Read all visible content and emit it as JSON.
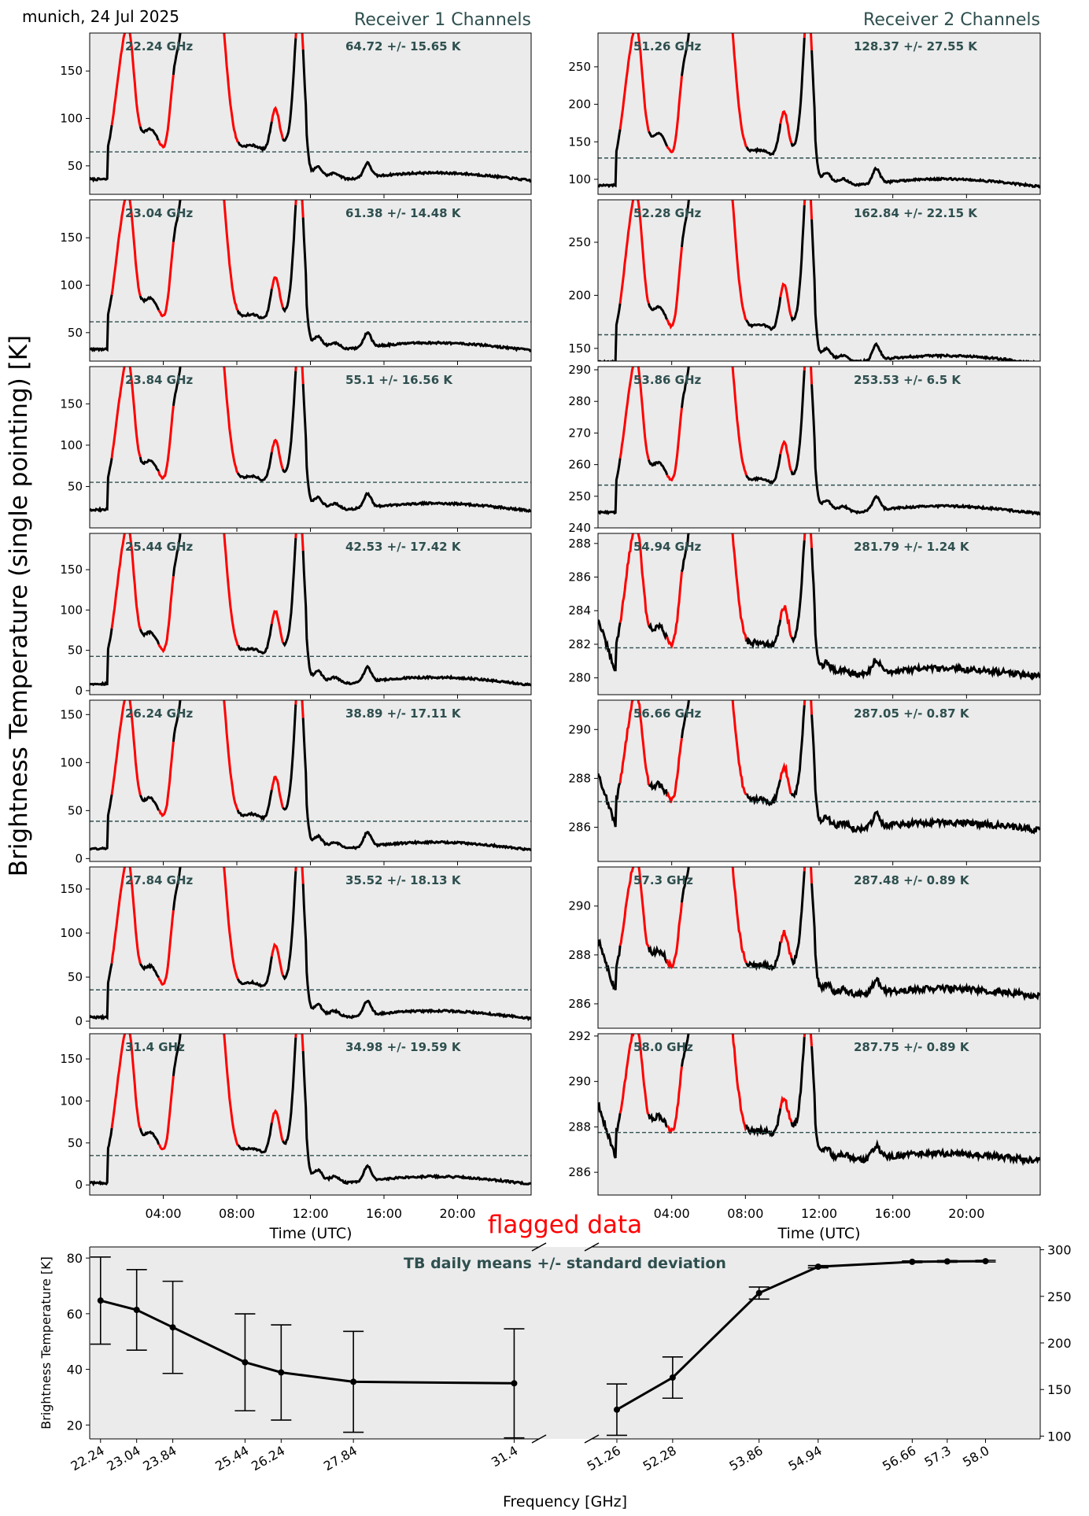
{
  "header": {
    "station_date": "munich, 24 Jul 2025",
    "receiver1_title": "Receiver 1 Channels",
    "receiver2_title": "Receiver 2 Channels",
    "y_label": "Brightness Temperature (single pointing) [K]",
    "time_xlabel": "Time (UTC)",
    "flag_label": "flagged data"
  },
  "colors": {
    "panel_bg": "#ebebeb",
    "trace": "#000000",
    "flagged": "#ff0000",
    "mean_line": "#2f4f4f",
    "title": "#2f4f4f",
    "flag_text": "#ff0000"
  },
  "time_ticks": [
    "04:00",
    "08:00",
    "12:00",
    "16:00",
    "20:00"
  ],
  "time_tick_hours": [
    4,
    8,
    12,
    16,
    20
  ],
  "time_range_hours": [
    0,
    24
  ],
  "flag_intervals_hours": [
    [
      1.2,
      2.7
    ],
    [
      3.7,
      4.5
    ],
    [
      5.2,
      5.8
    ],
    [
      6.0,
      8.0
    ],
    [
      9.9,
      10.5
    ],
    [
      11.2,
      11.6
    ]
  ],
  "rec1": {
    "channels": [
      {
        "freq": "22.24 GHz",
        "stats": "64.72 +/- 15.65 K",
        "mean": 64.72,
        "ylim": [
          20,
          190
        ],
        "yticks": [
          50,
          100,
          150
        ],
        "yticklabels": [
          "50",
          "100",
          "150"
        ]
      },
      {
        "freq": "23.04 GHz",
        "stats": "61.38 +/- 14.48 K",
        "mean": 61.38,
        "ylim": [
          20,
          190
        ],
        "yticks": [
          50,
          100,
          150
        ],
        "yticklabels": [
          "50",
          "100",
          "150"
        ]
      },
      {
        "freq": "23.84 GHz",
        "stats": "55.1 +/- 16.56 K",
        "mean": 55.1,
        "ylim": [
          0,
          195
        ],
        "yticks": [
          50,
          100,
          150
        ],
        "yticklabels": [
          "50",
          "100",
          "150"
        ]
      },
      {
        "freq": "25.44 GHz",
        "stats": "42.53 +/- 17.42 K",
        "mean": 42.53,
        "ylim": [
          -5,
          195
        ],
        "yticks": [
          0,
          50,
          100,
          150
        ],
        "yticklabels": [
          "0",
          "50",
          "100",
          "150"
        ]
      },
      {
        "freq": "26.24 GHz",
        "stats": "38.89 +/- 17.11 K",
        "mean": 38.89,
        "ylim": [
          -3,
          165
        ],
        "yticks": [
          0,
          50,
          100,
          150
        ],
        "yticklabels": [
          "0",
          "50",
          "100",
          "150"
        ]
      },
      {
        "freq": "27.84 GHz",
        "stats": "35.52 +/- 18.13 K",
        "mean": 35.52,
        "ylim": [
          -8,
          175
        ],
        "yticks": [
          0,
          50,
          100,
          150
        ],
        "yticklabels": [
          "0",
          "50",
          "100",
          "150"
        ]
      },
      {
        "freq": "31.4 GHz",
        "stats": "34.98 +/- 19.59 K",
        "mean": 34.98,
        "ylim": [
          -12,
          180
        ],
        "yticks": [
          0,
          50,
          100,
          150
        ],
        "yticklabels": [
          "0",
          "50",
          "100",
          "150"
        ]
      }
    ]
  },
  "rec2": {
    "channels": [
      {
        "freq": "51.26 GHz",
        "stats": "128.37 +/- 27.55 K",
        "mean": 128.37,
        "ylim": [
          80,
          295
        ],
        "yticks": [
          100,
          150,
          200,
          250
        ],
        "yticklabels": [
          "100",
          "150",
          "200",
          "250"
        ]
      },
      {
        "freq": "52.28 GHz",
        "stats": "162.84 +/- 22.15 K",
        "mean": 162.84,
        "ylim": [
          138,
          290
        ],
        "yticks": [
          150,
          200,
          250
        ],
        "yticklabels": [
          "150",
          "200",
          "250"
        ]
      },
      {
        "freq": "53.86 GHz",
        "stats": "253.53 +/- 6.5 K",
        "mean": 253.53,
        "ylim": [
          240,
          291
        ],
        "yticks": [
          240,
          250,
          260,
          270,
          280,
          290
        ],
        "yticklabels": [
          "240",
          "250",
          "260",
          "270",
          "280",
          "290"
        ]
      },
      {
        "freq": "54.94 GHz",
        "stats": "281.79 +/- 1.24 K",
        "mean": 281.79,
        "ylim": [
          279,
          288.6
        ],
        "yticks": [
          280,
          282,
          284,
          286,
          288
        ],
        "yticklabels": [
          "280",
          "282",
          "284",
          "286",
          "288"
        ]
      },
      {
        "freq": "56.66 GHz",
        "stats": "287.05 +/- 0.87 K",
        "mean": 287.05,
        "ylim": [
          284.6,
          291.2
        ],
        "yticks": [
          286,
          288,
          290
        ],
        "yticklabels": [
          "286",
          "288",
          "290"
        ]
      },
      {
        "freq": "57.3 GHz",
        "stats": "287.48 +/- 0.89 K",
        "mean": 287.48,
        "ylim": [
          285,
          291.6
        ],
        "yticks": [
          286,
          288,
          290
        ],
        "yticklabels": [
          "286",
          "288",
          "290"
        ]
      },
      {
        "freq": "58.0 GHz",
        "stats": "287.75 +/- 0.89 K",
        "mean": 287.75,
        "ylim": [
          285,
          292.1
        ],
        "yticks": [
          286,
          288,
          290,
          292
        ],
        "yticklabels": [
          "286",
          "288",
          "290",
          "292"
        ]
      }
    ]
  },
  "chart_data": {
    "type": "line",
    "title": "TB daily means +/- standard deviation",
    "xlabel": "Frequency [GHz]",
    "ylabel": "Brightness Temperature [K]",
    "left": {
      "x": [
        22.24,
        23.04,
        23.84,
        25.44,
        26.24,
        27.84,
        31.4
      ],
      "xticklabels": [
        "22.24",
        "23.04",
        "23.84",
        "25.44",
        "26.24",
        "27.84",
        "31.4"
      ],
      "values": [
        64.72,
        61.38,
        55.1,
        42.53,
        38.89,
        35.52,
        34.98
      ],
      "errors": [
        15.65,
        14.48,
        16.56,
        17.42,
        17.11,
        18.13,
        19.59
      ],
      "xlim": [
        22.0,
        31.95
      ],
      "ylim": [
        15,
        84
      ],
      "yticks": [
        20,
        40,
        60,
        80
      ],
      "yticklabels": [
        "20",
        "40",
        "60",
        "80"
      ]
    },
    "right": {
      "x": [
        51.26,
        52.28,
        53.86,
        54.94,
        56.66,
        57.3,
        58.0
      ],
      "xticklabels": [
        "51.26",
        "52.28",
        "53.86",
        "54.94",
        "56.66",
        "57.3",
        "58.0"
      ],
      "values": [
        128.37,
        162.84,
        253.53,
        281.79,
        287.05,
        287.48,
        287.75
      ],
      "errors": [
        27.55,
        22.15,
        6.5,
        1.24,
        0.87,
        0.89,
        0.89
      ],
      "xlim": [
        50.8,
        59.0
      ],
      "ylim": [
        97,
        303
      ],
      "yticks": [
        100,
        150,
        200,
        250,
        300
      ],
      "yticklabels": [
        "100",
        "150",
        "200",
        "250",
        "300"
      ]
    }
  }
}
